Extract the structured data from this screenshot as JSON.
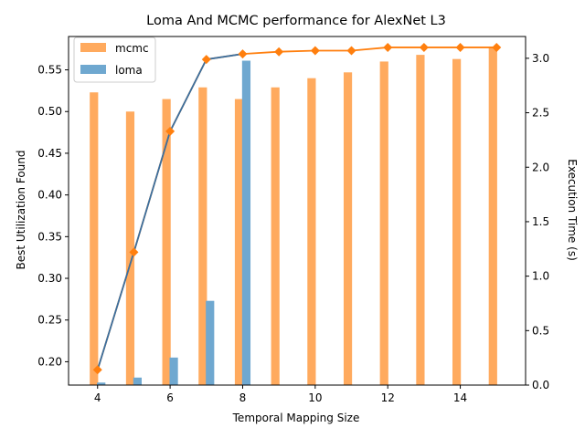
{
  "chart_data": {
    "type": "bar",
    "title": "Loma And MCMC performance for AlexNet L3",
    "xlabel": "Temporal Mapping Size",
    "ylabel": "Best Utilization Found",
    "y2label": "Execution Time (s)",
    "x": [
      4,
      5,
      6,
      7,
      8,
      9,
      10,
      11,
      12,
      13,
      14,
      15
    ],
    "xlim": [
      3.2,
      15.8
    ],
    "ylim": [
      0.172,
      0.59
    ],
    "y2lim": [
      0.0,
      3.2
    ],
    "xticks": [
      "4",
      "6",
      "8",
      "10",
      "12",
      "14"
    ],
    "yticks": [
      "0.20",
      "0.25",
      "0.30",
      "0.35",
      "0.40",
      "0.45",
      "0.50",
      "0.55"
    ],
    "y2ticks": [
      "0.0",
      "0.5",
      "1.0",
      "1.5",
      "2.0",
      "2.5",
      "3.0"
    ],
    "legend_position": "top-left",
    "series": [
      {
        "name": "mcmc",
        "kind": "bar",
        "axis": "left",
        "color": "#ffaa5e",
        "x": [
          4,
          5,
          6,
          7,
          8,
          9,
          10,
          11,
          12,
          13,
          14,
          15
        ],
        "values": [
          0.523,
          0.5,
          0.515,
          0.529,
          0.515,
          0.529,
          0.54,
          0.547,
          0.56,
          0.568,
          0.563,
          0.578
        ]
      },
      {
        "name": "loma",
        "kind": "bar",
        "axis": "left",
        "color": "#6fa8d0",
        "x": [
          4,
          5,
          6,
          7,
          8
        ],
        "values": [
          0.175,
          0.181,
          0.205,
          0.273,
          0.561
        ]
      },
      {
        "kind": "line",
        "axis": "right",
        "color": "#ff7f0e",
        "x": [
          4,
          5,
          6,
          7,
          8,
          9,
          10,
          11,
          12,
          13,
          14,
          15
        ],
        "values": [
          0.14,
          1.22,
          2.33,
          2.99,
          3.04,
          3.06,
          3.07,
          3.07,
          3.1,
          3.1,
          3.1,
          3.1
        ]
      },
      {
        "kind": "line",
        "axis": "right",
        "color": "#3a6fa0",
        "x": [
          4,
          5,
          6,
          7,
          8
        ],
        "values": [
          0.14,
          1.22,
          2.33,
          2.99,
          3.04
        ]
      }
    ]
  }
}
